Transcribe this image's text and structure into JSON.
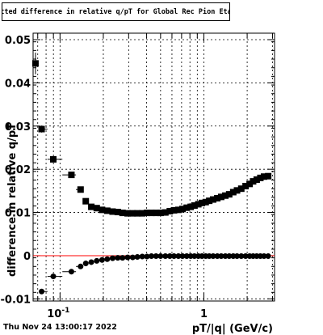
{
  "title": "Fitted difference in relative q/pT for Global Rec Pion EtapT",
  "timestamp": "Thu Nov 24 13:00:17 2022",
  "chart_data": {
    "type": "scatter",
    "title": "Fitted difference in relative q/pT for Global Rec Pion EtapT",
    "xlabel": "pT/|q| (GeV/c)",
    "ylabel": "difference in relative q/pT",
    "xscale": "log",
    "xlim": [
      0.065,
      3.1
    ],
    "ylim": [
      -0.0105,
      0.0515
    ],
    "x_tick_labels": [
      "10^-1",
      "1"
    ],
    "y_tick_labels": [
      "-0.01",
      "0",
      "0.01",
      "0.02",
      "0.03",
      "0.04",
      "0.05"
    ],
    "y_ticks": [
      -0.01,
      0,
      0.01,
      0.02,
      0.03,
      0.04,
      0.05
    ],
    "grid": true,
    "reference_line": {
      "y": 0,
      "color": "#ff0000"
    },
    "series": [
      {
        "marker": "square",
        "color": "#000000",
        "points": [
          [
            0.0675,
            0.0445,
            0.0025
          ],
          [
            0.0745,
            0.0293,
            0.0008
          ],
          [
            0.0898,
            0.0223,
            0.0005
          ],
          [
            0.12,
            0.0187,
            0.0003
          ],
          [
            0.139,
            0.0153,
            0.0002
          ],
          [
            0.151,
            0.0126,
            0.0002
          ],
          [
            0.165,
            0.0113,
            0.0002
          ],
          [
            0.18,
            0.011,
            0.0002
          ],
          [
            0.196,
            0.0106,
            0.0002
          ],
          [
            0.213,
            0.0104,
            0.0002
          ],
          [
            0.232,
            0.0102,
            0.0002
          ],
          [
            0.252,
            0.0101,
            0.0002
          ],
          [
            0.272,
            0.0099,
            0.0002
          ],
          [
            0.295,
            0.0098,
            0.0002
          ],
          [
            0.32,
            0.0098,
            0.0002
          ],
          [
            0.345,
            0.0098,
            0.0002
          ],
          [
            0.373,
            0.0098,
            0.0002
          ],
          [
            0.402,
            0.0099,
            0.0002
          ],
          [
            0.432,
            0.0099,
            0.0002
          ],
          [
            0.465,
            0.0099,
            0.0002
          ],
          [
            0.5,
            0.0099,
            0.0002
          ],
          [
            0.54,
            0.01,
            0.0002
          ],
          [
            0.58,
            0.0103,
            0.0002
          ],
          [
            0.62,
            0.0105,
            0.0002
          ],
          [
            0.665,
            0.0106,
            0.0002
          ],
          [
            0.71,
            0.0108,
            0.0002
          ],
          [
            0.76,
            0.0111,
            0.0002
          ],
          [
            0.81,
            0.0113,
            0.0002
          ],
          [
            0.86,
            0.0116,
            0.0002
          ],
          [
            0.915,
            0.0119,
            0.0002
          ],
          [
            0.97,
            0.0122,
            0.0002
          ],
          [
            1.03,
            0.0124,
            0.0002
          ],
          [
            1.09,
            0.0127,
            0.0002
          ],
          [
            1.16,
            0.013,
            0.0002
          ],
          [
            1.24,
            0.0133,
            0.0002
          ],
          [
            1.32,
            0.0136,
            0.0002
          ],
          [
            1.41,
            0.0139,
            0.0002
          ],
          [
            1.5,
            0.0142,
            0.0002
          ],
          [
            1.6,
            0.0147,
            0.0002
          ],
          [
            1.7,
            0.0151,
            0.0002
          ],
          [
            1.82,
            0.0155,
            0.0002
          ],
          [
            1.95,
            0.0161,
            0.0002
          ],
          [
            2.08,
            0.0166,
            0.0002
          ],
          [
            2.2,
            0.0172,
            0.0002
          ],
          [
            2.33,
            0.0176,
            0.0002
          ],
          [
            2.47,
            0.018,
            0.0002
          ],
          [
            2.62,
            0.0183,
            0.0002
          ],
          [
            2.8,
            0.0184,
            0.0002
          ]
        ]
      },
      {
        "marker": "circle",
        "color": "#000000",
        "points": [
          [
            0.0745,
            -0.0083,
            0.0004
          ],
          [
            0.0898,
            -0.0048,
            0.0003
          ],
          [
            0.12,
            -0.0037,
            0.0002
          ],
          [
            0.139,
            -0.0025,
            0.0002
          ],
          [
            0.151,
            -0.0018,
            0.0002
          ],
          [
            0.165,
            -0.0015,
            0.0002
          ],
          [
            0.18,
            -0.0012,
            0.0001
          ],
          [
            0.196,
            -0.001,
            0.0001
          ],
          [
            0.213,
            -0.0008,
            0.0001
          ],
          [
            0.232,
            -0.0006,
            0.0001
          ],
          [
            0.252,
            -0.0005,
            0.0001
          ],
          [
            0.272,
            -0.0005,
            0.0001
          ],
          [
            0.295,
            -0.0004,
            0.0001
          ],
          [
            0.32,
            -0.0004,
            0.0001
          ],
          [
            0.345,
            -0.0003,
            0.0001
          ],
          [
            0.373,
            -0.0002,
            0.0001
          ],
          [
            0.402,
            -0.0002,
            0.0001
          ],
          [
            0.432,
            -0.0001,
            0.0001
          ],
          [
            0.465,
            -0.0001,
            0.0001
          ],
          [
            0.5,
            -0.0001,
            0.0001
          ],
          [
            0.54,
            -0.0001,
            0.0001
          ],
          [
            0.58,
            -0.0001,
            0.0001
          ],
          [
            0.62,
            -0.0001,
            0.0001
          ],
          [
            0.665,
            -0.0001,
            0.0001
          ],
          [
            0.71,
            -0.0001,
            0.0001
          ],
          [
            0.76,
            -0.0001,
            0.0001
          ],
          [
            0.81,
            -0.0001,
            0.0001
          ],
          [
            0.86,
            -0.0001,
            0.0001
          ],
          [
            0.915,
            -0.0001,
            0.0001
          ],
          [
            0.97,
            -0.0001,
            0.0001
          ],
          [
            1.03,
            -0.0001,
            0.0001
          ],
          [
            1.09,
            -0.0001,
            0.0001
          ],
          [
            1.16,
            -0.0001,
            0.0001
          ],
          [
            1.24,
            -0.0001,
            0.0001
          ],
          [
            1.32,
            -0.0001,
            0.0001
          ],
          [
            1.41,
            -0.0001,
            0.0001
          ],
          [
            1.5,
            -0.0001,
            0.0001
          ],
          [
            1.6,
            -0.0001,
            0.0001
          ],
          [
            1.7,
            -0.0001,
            0.0001
          ],
          [
            1.82,
            -0.0001,
            0.0001
          ],
          [
            1.95,
            -0.0001,
            0.0001
          ],
          [
            2.08,
            -0.0001,
            0.0001
          ],
          [
            2.2,
            -0.0001,
            0.0001
          ],
          [
            2.33,
            -0.0001,
            0.0001
          ],
          [
            2.47,
            -0.0001,
            0.0001
          ],
          [
            2.62,
            -0.0001,
            0.0001
          ],
          [
            2.8,
            -0.0001,
            0.0001
          ]
        ]
      }
    ]
  }
}
